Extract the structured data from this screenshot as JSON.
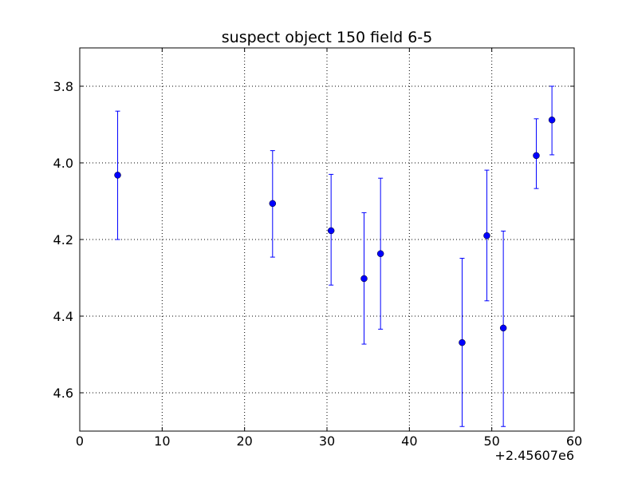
{
  "chart_data": {
    "type": "scatter",
    "title": "suspect object 150 field 6-5",
    "xlabel": "",
    "ylabel": "",
    "x_offset_label": "+2.45607e6",
    "xlim": [
      0,
      60
    ],
    "ylim": [
      4.7,
      3.7
    ],
    "y_inverted": true,
    "grid": true,
    "x_ticks": [
      0,
      10,
      20,
      30,
      40,
      50,
      60
    ],
    "x_tick_labels": [
      "0",
      "10",
      "20",
      "30",
      "40",
      "50",
      "60"
    ],
    "y_ticks": [
      3.8,
      4.0,
      4.2,
      4.4,
      4.6
    ],
    "y_tick_labels": [
      "3.8",
      "4.0",
      "4.2",
      "4.4",
      "4.6"
    ],
    "series": [
      {
        "color": "#0000ff",
        "marker": "circle",
        "points": [
          {
            "x": 4.6,
            "y": 4.032,
            "err_low": 3.865,
            "err_high": 4.2
          },
          {
            "x": 23.4,
            "y": 4.106,
            "err_low": 3.968,
            "err_high": 4.246
          },
          {
            "x": 30.5,
            "y": 4.177,
            "err_low": 4.03,
            "err_high": 4.319
          },
          {
            "x": 34.5,
            "y": 4.302,
            "err_low": 4.13,
            "err_high": 4.473
          },
          {
            "x": 36.5,
            "y": 4.237,
            "err_low": 4.04,
            "err_high": 4.434
          },
          {
            "x": 46.4,
            "y": 4.469,
            "err_low": 4.249,
            "err_high": 4.688
          },
          {
            "x": 49.4,
            "y": 4.19,
            "err_low": 4.019,
            "err_high": 4.36
          },
          {
            "x": 51.4,
            "y": 4.431,
            "err_low": 4.178,
            "err_high": 4.688
          },
          {
            "x": 55.4,
            "y": 3.981,
            "err_low": 3.885,
            "err_high": 4.067
          },
          {
            "x": 57.3,
            "y": 3.888,
            "err_low": 3.8,
            "err_high": 3.979
          }
        ]
      }
    ]
  }
}
